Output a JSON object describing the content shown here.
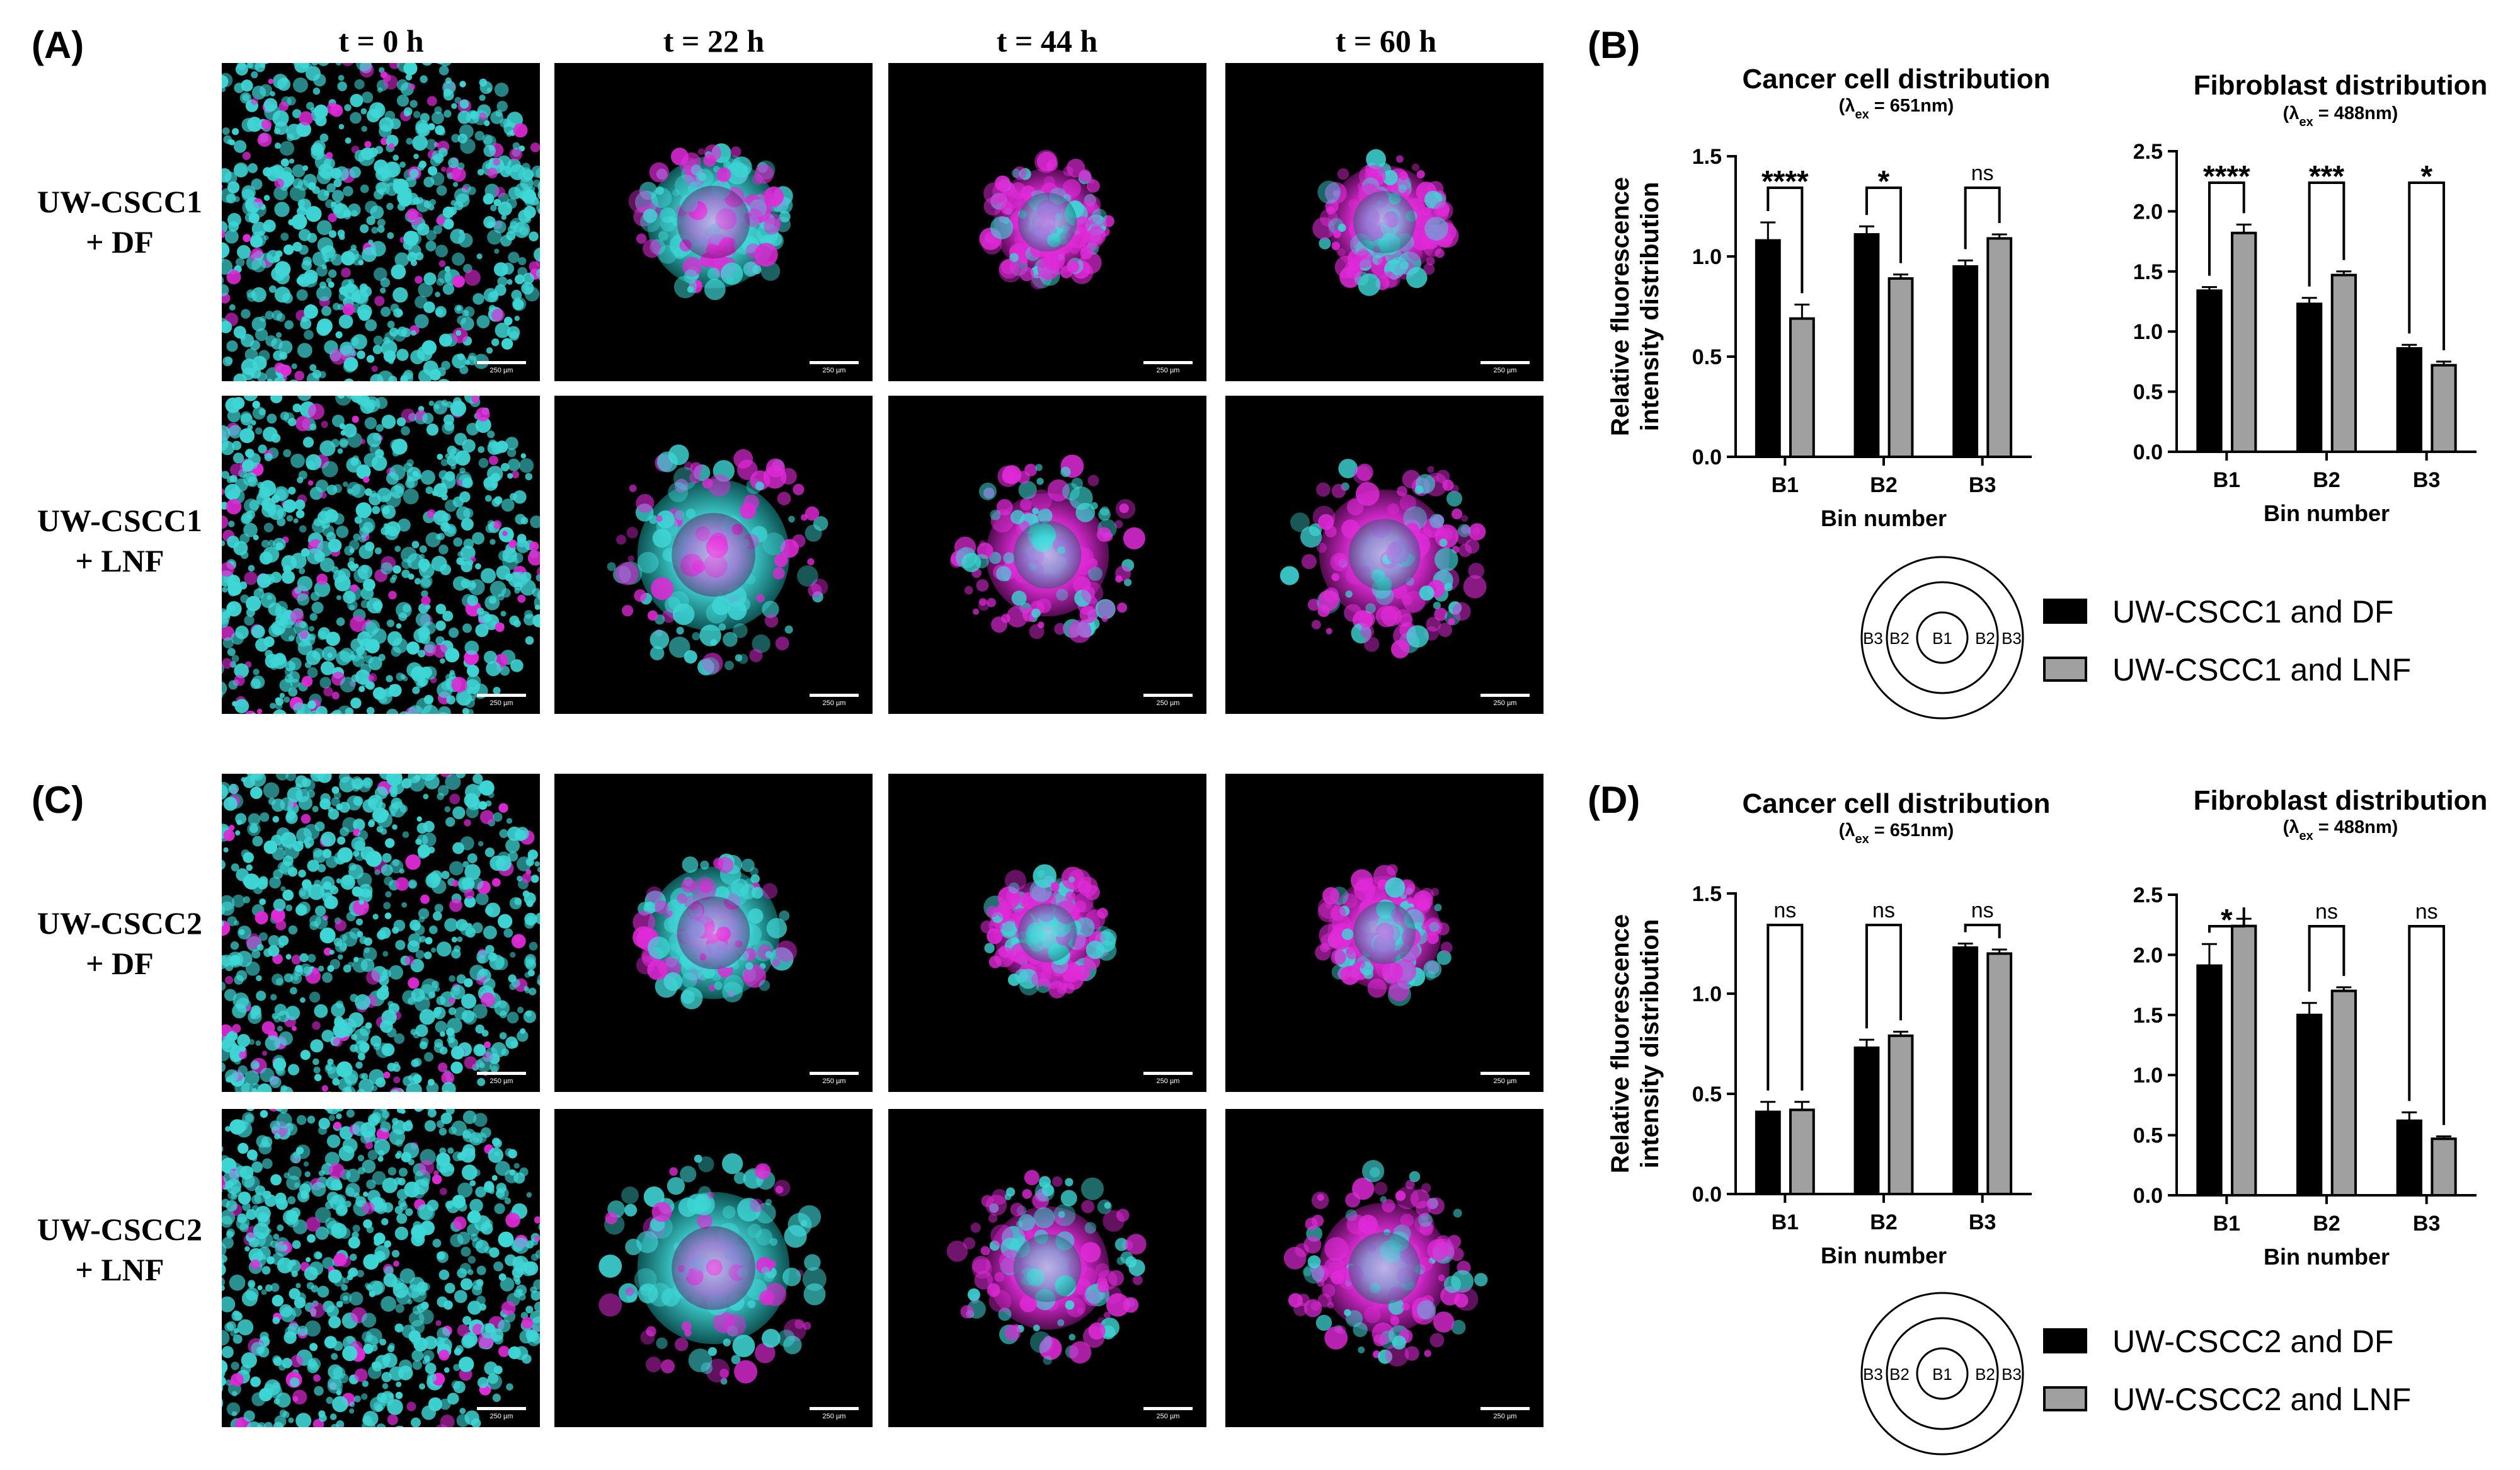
{
  "panel_labels": [
    "(A)",
    "(B)",
    "(C)",
    "(D)"
  ],
  "time_labels": [
    "t = 0 h",
    "t = 22 h",
    "t = 44 h",
    "t = 60 h"
  ],
  "micrographs": {
    "rows": [
      {
        "line1": "UW-CSCC1",
        "line2": "+ DF"
      },
      {
        "line1": "UW-CSCC1",
        "line2": "+ LNF"
      },
      {
        "line1": "UW-CSCC2",
        "line2": "+ DF"
      },
      {
        "line1": "UW-CSCC2",
        "line2": "+ LNF"
      }
    ],
    "scale_bar_text": "250 µm",
    "colors": {
      "cyan": "#3fd6d6",
      "magenta": "#e02ad8",
      "background": "#000000"
    },
    "spheroid_description_levels": [
      [
        1.0,
        0.2,
        0.18,
        0.18
      ],
      [
        1.0,
        0.28,
        0.2,
        0.2
      ],
      [
        1.0,
        0.22,
        0.18,
        0.2
      ],
      [
        1.0,
        0.3,
        0.24,
        0.22
      ]
    ]
  },
  "chart_data": [
    {
      "type": "bar",
      "panel": "(B)",
      "title": "Cancer cell distribution",
      "subtitle": {
        "pre": "(λ",
        "sub": "ex",
        "post": " = 651nm)"
      },
      "xlabel": "Bin number",
      "ylabel": [
        "Relative fluorescence",
        "intensity distribution"
      ],
      "categories": [
        "B1",
        "B2",
        "B3"
      ],
      "ylim": [
        0,
        1.5
      ],
      "yticks": [
        "0.0",
        "0.5",
        "1.0",
        "1.5"
      ],
      "ytick_values": [
        0,
        0.5,
        1.0,
        1.5
      ],
      "series": [
        {
          "values": [
            1.08,
            1.11,
            0.95
          ],
          "errors": [
            0.09,
            0.04,
            0.03
          ],
          "color": "#000000"
        },
        {
          "values": [
            0.69,
            0.89,
            1.09
          ],
          "errors": [
            0.07,
            0.02,
            0.02
          ],
          "color": "#a0a0a0"
        }
      ],
      "significance": [
        "****",
        "*",
        "ns"
      ]
    },
    {
      "type": "bar",
      "panel": "(B)",
      "title": "Fibroblast distribution",
      "subtitle": {
        "pre": "(λ",
        "sub": "ex",
        "post": " = 488nm)"
      },
      "xlabel": "Bin number",
      "categories": [
        "B1",
        "B2",
        "B3"
      ],
      "ylim": [
        0,
        2.5
      ],
      "yticks": [
        "0.0",
        "0.5",
        "1.0",
        "1.5",
        "2.0",
        "2.5"
      ],
      "ytick_values": [
        0,
        0.5,
        1.0,
        1.5,
        2.0,
        2.5
      ],
      "series": [
        {
          "values": [
            1.34,
            1.23,
            0.86
          ],
          "errors": [
            0.03,
            0.05,
            0.03
          ],
          "color": "#000000"
        },
        {
          "values": [
            1.82,
            1.47,
            0.72
          ],
          "errors": [
            0.07,
            0.03,
            0.03
          ],
          "color": "#a0a0a0"
        }
      ],
      "significance": [
        "****",
        "***",
        "*"
      ]
    },
    {
      "type": "bar",
      "panel": "(D)",
      "title": "Cancer cell distribution",
      "subtitle": {
        "pre": "(λ",
        "sub": "ex",
        "post": " = 651nm)"
      },
      "xlabel": "Bin number",
      "ylabel": [
        "Relative fluorescence",
        "intensity distribution"
      ],
      "categories": [
        "B1",
        "B2",
        "B3"
      ],
      "ylim": [
        0,
        1.5
      ],
      "yticks": [
        "0.0",
        "0.5",
        "1.0",
        "1.5"
      ],
      "ytick_values": [
        0,
        0.5,
        1.0,
        1.5
      ],
      "series": [
        {
          "values": [
            0.41,
            0.73,
            1.23
          ],
          "errors": [
            0.05,
            0.04,
            0.02
          ],
          "color": "#000000"
        },
        {
          "values": [
            0.42,
            0.79,
            1.2
          ],
          "errors": [
            0.04,
            0.02,
            0.02
          ],
          "color": "#a0a0a0"
        }
      ],
      "significance": [
        "ns",
        "ns",
        "ns"
      ]
    },
    {
      "type": "bar",
      "panel": "(D)",
      "title": "Fibroblast distribution",
      "subtitle": {
        "pre": "(λ",
        "sub": "ex",
        "post": " = 488nm)"
      },
      "xlabel": "Bin number",
      "categories": [
        "B1",
        "B2",
        "B3"
      ],
      "ylim": [
        0,
        2.5
      ],
      "yticks": [
        "0.0",
        "0.5",
        "1.0",
        "1.5",
        "2.0",
        "2.5"
      ],
      "ytick_values": [
        0,
        0.5,
        1.0,
        1.5,
        2.0,
        2.5
      ],
      "series": [
        {
          "values": [
            1.91,
            1.5,
            0.62
          ],
          "errors": [
            0.18,
            0.1,
            0.07
          ],
          "color": "#000000"
        },
        {
          "values": [
            2.24,
            1.7,
            0.47
          ],
          "errors": [
            0.06,
            0.03,
            0.02
          ],
          "color": "#a0a0a0"
        }
      ],
      "significance": [
        "*",
        "ns",
        "ns"
      ]
    }
  ],
  "legends": [
    {
      "entries": [
        {
          "label": "UW-CSCC1 and DF",
          "color": "#000000"
        },
        {
          "label": "UW-CSCC1 and LNF",
          "color": "#a0a0a0"
        }
      ]
    },
    {
      "entries": [
        {
          "label": "UW-CSCC2 and DF",
          "color": "#000000"
        },
        {
          "label": "UW-CSCC2 and LNF",
          "color": "#a0a0a0"
        }
      ]
    }
  ],
  "bin_diagram_labels": [
    "B3",
    "B2",
    "B1",
    "B2",
    "B3"
  ]
}
